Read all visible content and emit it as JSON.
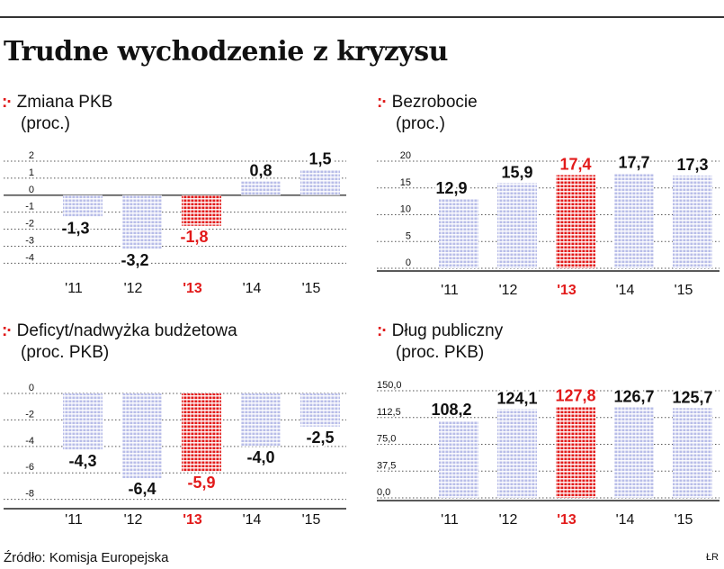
{
  "title": "Trudne wychodzenie z kryzysu",
  "panel_mark": ":·",
  "source": "Źródło: Komisja Europejska",
  "credit": "ŁR",
  "colors": {
    "bar": "#b8bde8",
    "highlight": "#e21a1a",
    "text": "#111111",
    "grid": "#555555"
  },
  "chart_data": [
    {
      "type": "bar",
      "title": "Zmiana PKB",
      "subtitle": "(proc.)",
      "categories": [
        "'11",
        "'12",
        "'13",
        "'14",
        "'15"
      ],
      "values": [
        -1.3,
        -3.2,
        -1.8,
        0.8,
        1.5
      ],
      "value_labels": [
        "-1,3",
        "-3,2",
        "-1,8",
        "0,8",
        "1,5"
      ],
      "highlight_index": 2,
      "yticks": [
        2,
        1,
        0,
        -1,
        -2,
        -3,
        -4
      ],
      "ytick_labels": [
        "2",
        "1",
        "0",
        "-1",
        "-2",
        "-3",
        "-4"
      ],
      "ylim": [
        -4.3,
        2
      ]
    },
    {
      "type": "bar",
      "title": "Bezrobocie",
      "subtitle": "(proc.)",
      "categories": [
        "'11",
        "'12",
        "'13",
        "'14",
        "'15"
      ],
      "values": [
        12.9,
        15.9,
        17.4,
        17.7,
        17.3
      ],
      "value_labels": [
        "12,9",
        "15,9",
        "17,4",
        "17,7",
        "17,3"
      ],
      "highlight_index": 2,
      "yticks": [
        20,
        15,
        10,
        5,
        0
      ],
      "ytick_labels": [
        "20",
        "15",
        "10",
        "5",
        "0"
      ],
      "ylim": [
        0,
        20
      ]
    },
    {
      "type": "bar",
      "title": "Deficyt/nadwyżka budżetowa",
      "subtitle": "(proc. PKB)",
      "categories": [
        "'11",
        "'12",
        "'13",
        "'14",
        "'15"
      ],
      "values": [
        -4.3,
        -6.4,
        -5.9,
        -4.0,
        -2.5
      ],
      "value_labels": [
        "-4,3",
        "-6,4",
        "-5,9",
        "-4,0",
        "-2,5"
      ],
      "highlight_index": 2,
      "yticks": [
        0,
        -2,
        -4,
        -6,
        -8
      ],
      "ytick_labels": [
        "0",
        "-2",
        "-4",
        "-6",
        "-8"
      ],
      "ylim": [
        -8.5,
        0
      ]
    },
    {
      "type": "bar",
      "title": "Dług publiczny",
      "subtitle": "(proc. PKB)",
      "categories": [
        "'11",
        "'12",
        "'13",
        "'14",
        "'15"
      ],
      "values": [
        108.2,
        124.1,
        127.8,
        126.7,
        125.7
      ],
      "value_labels": [
        "108,2",
        "124,1",
        "127,8",
        "126,7",
        "125,7"
      ],
      "highlight_index": 2,
      "yticks": [
        150,
        112.5,
        75,
        37.5,
        0
      ],
      "ytick_labels": [
        "150,0",
        "112,5",
        "75,0",
        "37,5",
        "0,0"
      ],
      "ylim": [
        0,
        150
      ]
    }
  ]
}
